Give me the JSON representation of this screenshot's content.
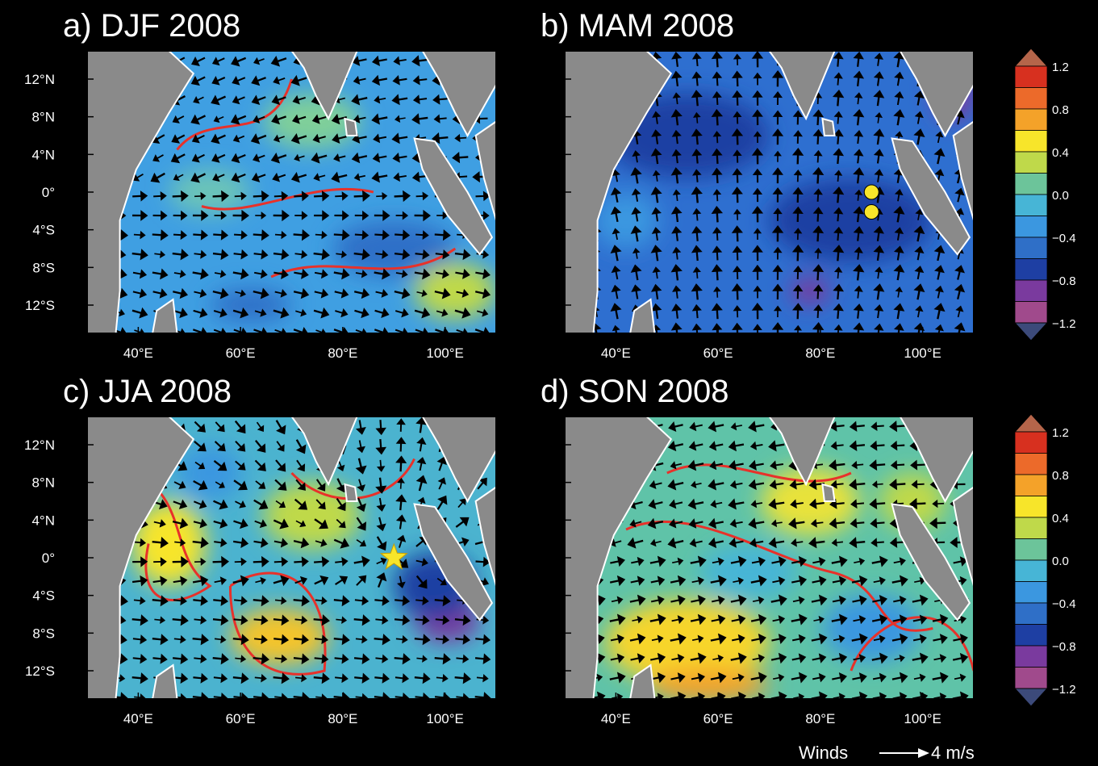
{
  "panels": [
    {
      "title": "a) DJF 2008",
      "lat_labels": [
        "12°N",
        "8°N",
        "4°N",
        "0°",
        "4°S",
        "8°S",
        "12°S"
      ],
      "lon_labels": [
        "40°E",
        "60°E",
        "80°E",
        "100°E"
      ]
    },
    {
      "title": "b) MAM 2008",
      "lon_labels": [
        "40°E",
        "60°E",
        "80°E",
        "100°E"
      ]
    },
    {
      "title": "c) JJA 2008",
      "lat_labels": [
        "12°N",
        "8°N",
        "4°N",
        "0°",
        "4°S",
        "8°S",
        "12°S"
      ],
      "lon_labels": [
        "40°E",
        "60°E",
        "80°E",
        "100°E"
      ]
    },
    {
      "title": "d) SON 2008",
      "lon_labels": [
        "40°E",
        "60°E",
        "80°E",
        "100°E"
      ]
    }
  ],
  "colorbars": [
    {
      "labels": [
        "1.2",
        "0.8",
        "0.4",
        "0.0",
        "−0.4",
        "−0.8",
        "−1.2"
      ]
    },
    {
      "labels": [
        "1.2",
        "0.8",
        "0.4",
        "0.0",
        "−0.4",
        "−0.8",
        "−1.2"
      ]
    }
  ],
  "legend": {
    "label": "Winds",
    "scale": "4 m/s"
  }
}
